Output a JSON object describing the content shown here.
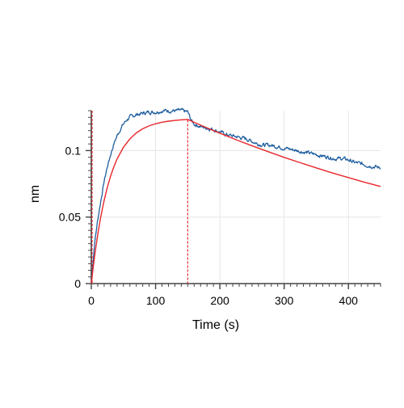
{
  "chart_data": {
    "type": "line",
    "title": "",
    "xlabel": "Time (s)",
    "ylabel": "nm",
    "xlim": [
      0,
      450
    ],
    "ylim": [
      0,
      0.13
    ],
    "x_ticks": [
      0,
      100,
      200,
      300,
      400
    ],
    "x_tick_labels": [
      "0",
      "100",
      "200",
      "300",
      "400"
    ],
    "y_ticks": [
      0,
      0.05,
      0.1
    ],
    "y_tick_labels": [
      "0",
      "0.05",
      "0.1"
    ],
    "x_gridlines": [
      100,
      200,
      300,
      400
    ],
    "y_gridlines": [
      0.05,
      0.1
    ],
    "grid": true,
    "legend": "none",
    "association_end": 150,
    "series": [
      {
        "role": "measured",
        "color": "#1f5fa0",
        "x": [
          0,
          5,
          10,
          15,
          20,
          25,
          30,
          35,
          40,
          45,
          50,
          55,
          60,
          70,
          80,
          90,
          100,
          110,
          120,
          130,
          140,
          150,
          155,
          160,
          170,
          180,
          190,
          200,
          210,
          220,
          230,
          240,
          250,
          260,
          270,
          280,
          290,
          300,
          310,
          320,
          330,
          340,
          350,
          360,
          370,
          380,
          390,
          400,
          410,
          420,
          430,
          440,
          450
        ],
        "y": [
          0,
          0.03,
          0.048,
          0.063,
          0.077,
          0.088,
          0.097,
          0.105,
          0.111,
          0.116,
          0.12,
          0.123,
          0.125,
          0.127,
          0.128,
          0.129,
          0.129,
          0.13,
          0.13,
          0.13,
          0.13,
          0.129,
          0.123,
          0.12,
          0.118,
          0.117,
          0.116,
          0.114,
          0.112,
          0.111,
          0.11,
          0.109,
          0.107,
          0.105,
          0.104,
          0.104,
          0.103,
          0.102,
          0.101,
          0.1,
          0.099,
          0.098,
          0.097,
          0.096,
          0.095,
          0.094,
          0.094,
          0.093,
          0.091,
          0.09,
          0.089,
          0.088,
          0.087
        ]
      },
      {
        "role": "fit",
        "color": "#e8262b",
        "x": [
          0,
          3,
          6,
          10,
          15,
          20,
          25,
          30,
          35,
          40,
          50,
          60,
          70,
          80,
          90,
          100,
          110,
          120,
          130,
          140,
          150,
          175,
          200,
          225,
          250,
          275,
          300,
          325,
          350,
          375,
          400,
          425,
          450
        ],
        "y": [
          0,
          0.0125,
          0.0237,
          0.0369,
          0.0509,
          0.0626,
          0.0725,
          0.0808,
          0.0877,
          0.0936,
          0.1025,
          0.1088,
          0.1133,
          0.1164,
          0.1186,
          0.1202,
          0.1213,
          0.1221,
          0.1227,
          0.1231,
          0.1234,
          0.1181,
          0.1131,
          0.1082,
          0.1036,
          0.0992,
          0.0949,
          0.0909,
          0.087,
          0.0832,
          0.0797,
          0.0762,
          0.073
        ]
      }
    ]
  }
}
